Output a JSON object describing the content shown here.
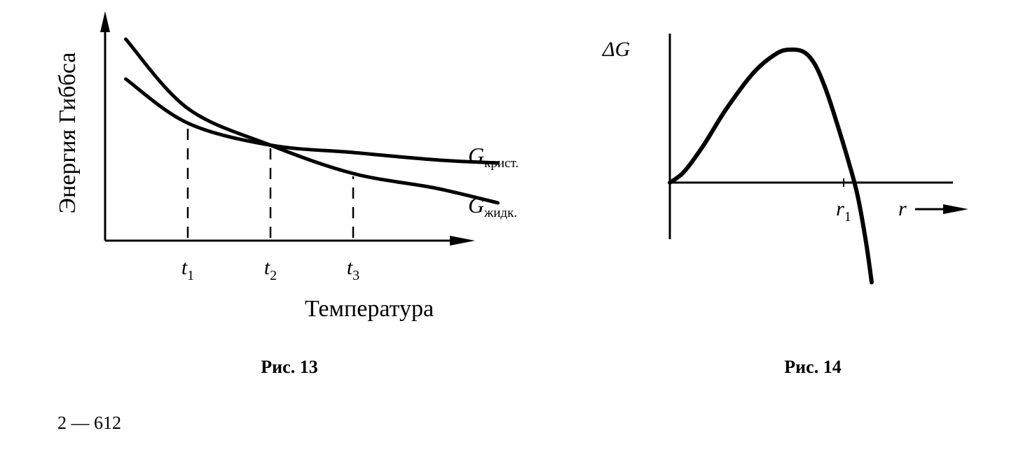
{
  "chart_data": [
    {
      "type": "line",
      "caption": "Рис. 13",
      "ylabel": "Энергия Гиббса",
      "xlabel": "Температура",
      "x_tick_labels": [
        {
          "main": "t",
          "sub": "1",
          "x": 1
        },
        {
          "main": "t",
          "sub": "2",
          "x": 2
        },
        {
          "main": "t",
          "sub": "3",
          "x": 3
        }
      ],
      "xlim": [
        0,
        5
      ],
      "ylim": [
        0,
        10
      ],
      "series": [
        {
          "name_main": "G",
          "name_sub": "крист.",
          "x": [
            0.25,
            1.0,
            2.0,
            3.0,
            4.0,
            4.75
          ],
          "y": [
            7.7,
            5.6,
            4.55,
            4.2,
            3.85,
            3.7
          ]
        },
        {
          "name_main": "G",
          "name_sub": "жидк.",
          "x": [
            0.25,
            1.0,
            2.0,
            3.0,
            4.0,
            4.75
          ],
          "y": [
            9.6,
            6.3,
            4.55,
            3.2,
            2.5,
            1.8
          ]
        }
      ]
    },
    {
      "type": "line",
      "caption": "Рис. 14",
      "ylabel_main": "ΔG",
      "xlabel": "r",
      "x_tick_label": {
        "main": "r",
        "sub": "1",
        "x": 0.62
      },
      "xlim": [
        0,
        1
      ],
      "ylim": [
        -1,
        1
      ],
      "series": [
        {
          "x": [
            0.0,
            0.05,
            0.12,
            0.2,
            0.3,
            0.38,
            0.43,
            0.48,
            0.52,
            0.56,
            0.6,
            0.64,
            0.67,
            0.7,
            0.72
          ],
          "y": [
            0.0,
            0.08,
            0.28,
            0.55,
            0.83,
            0.97,
            1.0,
            0.98,
            0.88,
            0.68,
            0.42,
            0.14,
            -0.1,
            -0.45,
            -0.75
          ]
        }
      ]
    }
  ],
  "page_number": "2 — 612"
}
